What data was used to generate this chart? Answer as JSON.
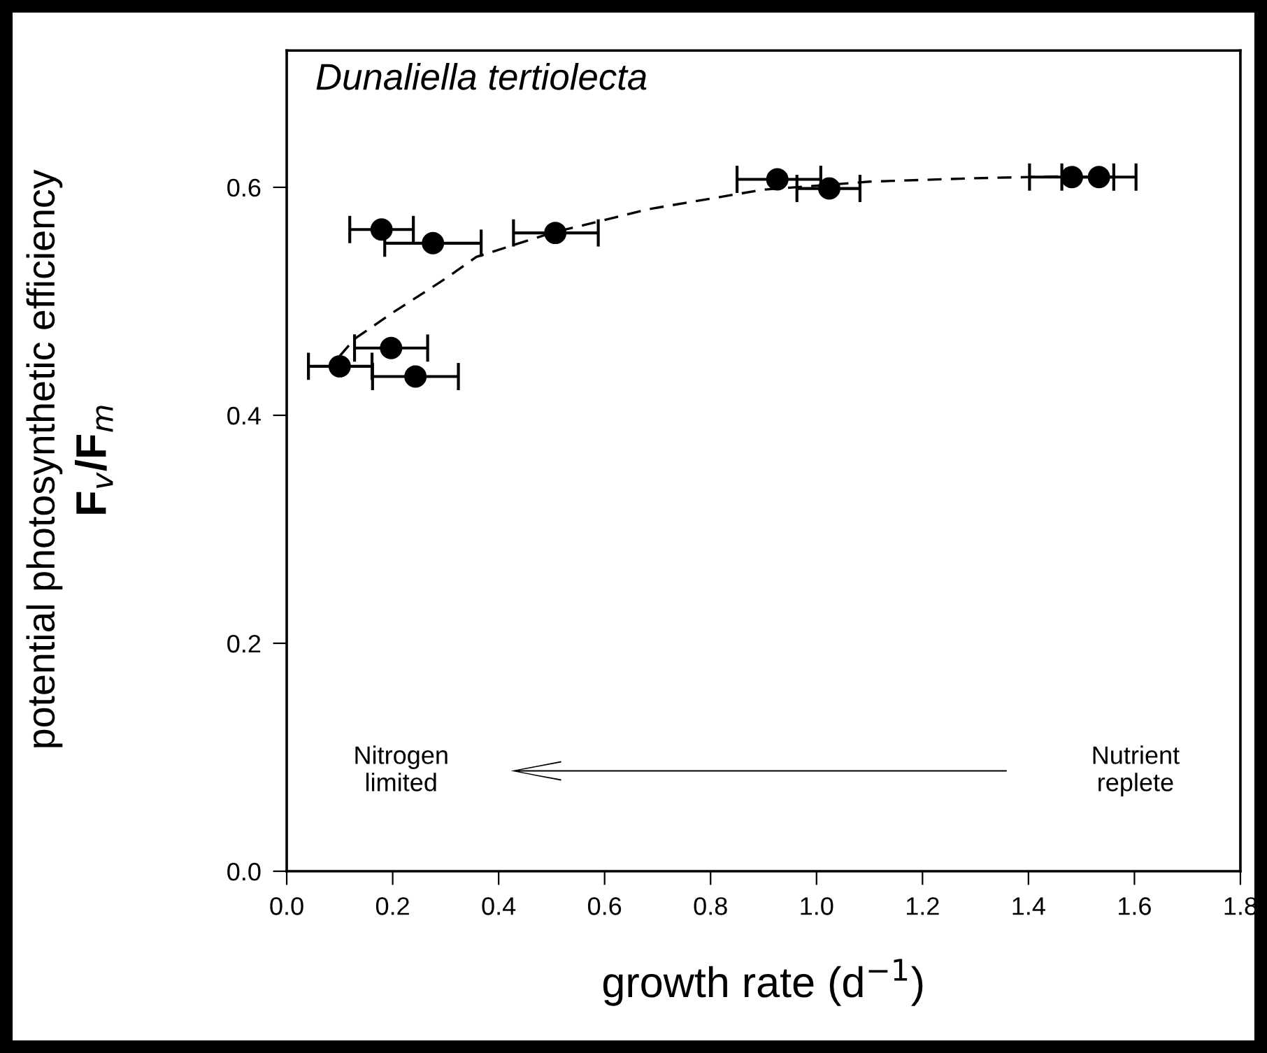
{
  "chart_data": {
    "type": "scatter",
    "title": "Dunaliella tertiolecta",
    "xlabel": "growth rate (d$^{−1}$)",
    "ylabel": "potential photosynthetic efficiency\nF$_{v}$/F$_{m}$",
    "xlim": [
      0,
      1.8
    ],
    "ylim": [
      0,
      0.72
    ],
    "xticks": [
      {
        "value": 0,
        "label": "0.0"
      },
      0.2,
      0.4,
      0.6,
      0.8,
      {
        "value": 1,
        "label": "1.0"
      },
      1.2,
      1.4,
      1.6,
      1.8
    ],
    "yticks": [
      {
        "value": 0,
        "label": "0.0"
      },
      0.2,
      0.4,
      0.6
    ],
    "grid": false,
    "legend": false,
    "annotations": [
      "Nitrogen\nlimited",
      "Nutrient\nreplete"
    ],
    "series": [
      {
        "color": "#000000",
        "marker": "circle",
        "x": [
          0.926,
          1.024,
          1.482,
          1.533,
          0.179,
          0.276,
          0.507,
          0.197,
          0.1,
          0.243
        ],
        "values": [
          0.607,
          0.599,
          0.609,
          0.609,
          0.563,
          0.551,
          0.56,
          0.459,
          0.443,
          0.434
        ],
        "xerrors": [
          [
            0.85,
            1.008
          ],
          [
            0.963,
            1.082
          ],
          [
            1.402,
            1.561
          ],
          [
            1.463,
            1.603
          ],
          [
            0.119,
            0.239
          ],
          [
            0.185,
            0.367
          ],
          [
            0.428,
            0.588
          ],
          [
            0.128,
            0.266
          ],
          [
            0.041,
            0.161
          ],
          [
            0.162,
            0.324
          ]
        ]
      },
      {
        "type": "line",
        "color": "#000000",
        "line_style": "dashed",
        "marker": "none",
        "x": [
          0.1,
          0.128,
          0.2,
          0.3,
          0.358,
          0.5,
          0.685,
          0.9,
          1.1,
          1.3,
          1.5
        ],
        "values": [
          0.452,
          0.467,
          0.49,
          0.52,
          0.539,
          0.56,
          0.581,
          0.598,
          0.605,
          0.608,
          0.61
        ]
      }
    ]
  }
}
